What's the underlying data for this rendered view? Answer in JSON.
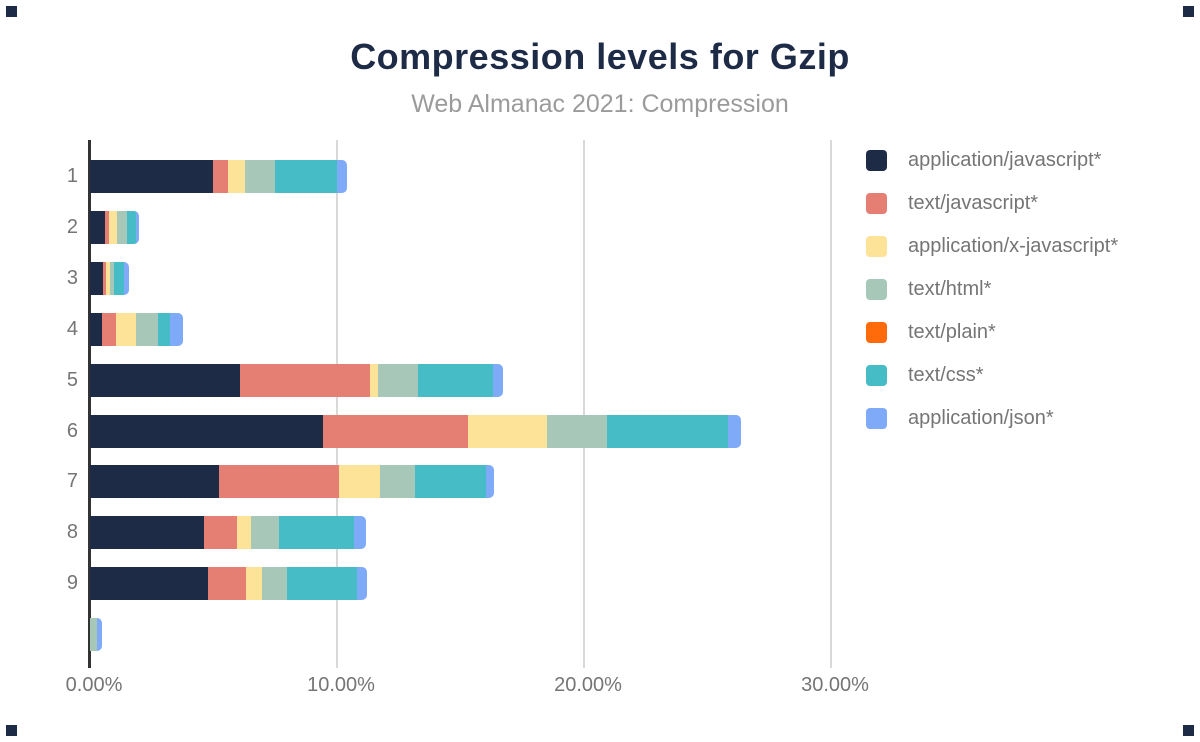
{
  "header": {
    "title": "Compression levels for Gzip",
    "subtitle": "Web Almanac 2021: Compression"
  },
  "style": {
    "title_color": "#1e2b47",
    "subtitle_color": "#9b9b9b",
    "axis_label_color": "#757575",
    "gridline_color": "#d9d9d9",
    "axis_line_color": "#333333",
    "corner_mark_color": "#1e2b47",
    "background": "#ffffff"
  },
  "chart_data": {
    "type": "bar",
    "orientation": "horizontal",
    "stacked": true,
    "grid": true,
    "legend_position": "right",
    "title": "Compression levels for Gzip",
    "subtitle": "Web Almanac 2021: Compression",
    "xlabel": "",
    "ylabel": "",
    "xlim": [
      0,
      35
    ],
    "categories": [
      "1",
      "2",
      "3",
      "4",
      "5",
      "6",
      "7",
      "8",
      "9",
      ""
    ],
    "x_axis": {
      "ticks": [
        {
          "value": 0,
          "label": "0.00%"
        },
        {
          "value": 10,
          "label": "10.00%"
        },
        {
          "value": 20,
          "label": "20.00%"
        },
        {
          "value": 30,
          "label": "30.00%"
        }
      ]
    },
    "series": [
      {
        "name": "application/javascript*",
        "color": "#1e2b47",
        "values": [
          4.97,
          0.6,
          0.54,
          0.5,
          6.07,
          9.45,
          5.23,
          4.62,
          4.79,
          0
        ]
      },
      {
        "name": "text/javascript*",
        "color": "#e57e73",
        "values": [
          0.61,
          0.15,
          0.12,
          0.54,
          5.26,
          5.85,
          4.86,
          1.32,
          1.51,
          0
        ]
      },
      {
        "name": "application/x-javascript*",
        "color": "#fde398",
        "values": [
          0.7,
          0.36,
          0.16,
          0.84,
          0.34,
          3.21,
          1.65,
          0.57,
          0.65,
          0
        ]
      },
      {
        "name": "text/html*",
        "color": "#a7c8b9",
        "values": [
          1.21,
          0.4,
          0.16,
          0.88,
          1.62,
          2.42,
          1.42,
          1.16,
          1.04,
          0.3
        ]
      },
      {
        "name": "text/plain*",
        "color": "#ff6b0a",
        "values": [
          0,
          0,
          0,
          0,
          0,
          0,
          0,
          0,
          0,
          0
        ]
      },
      {
        "name": "text/css*",
        "color": "#45bcc6",
        "values": [
          2.5,
          0.36,
          0.4,
          0.47,
          3.04,
          4.9,
          2.87,
          3.02,
          2.81,
          0
        ]
      },
      {
        "name": "application/json*",
        "color": "#7faaf8",
        "values": [
          0.4,
          0.11,
          0.2,
          0.54,
          0.38,
          0.54,
          0.32,
          0.49,
          0.43,
          0.18
        ]
      }
    ]
  }
}
